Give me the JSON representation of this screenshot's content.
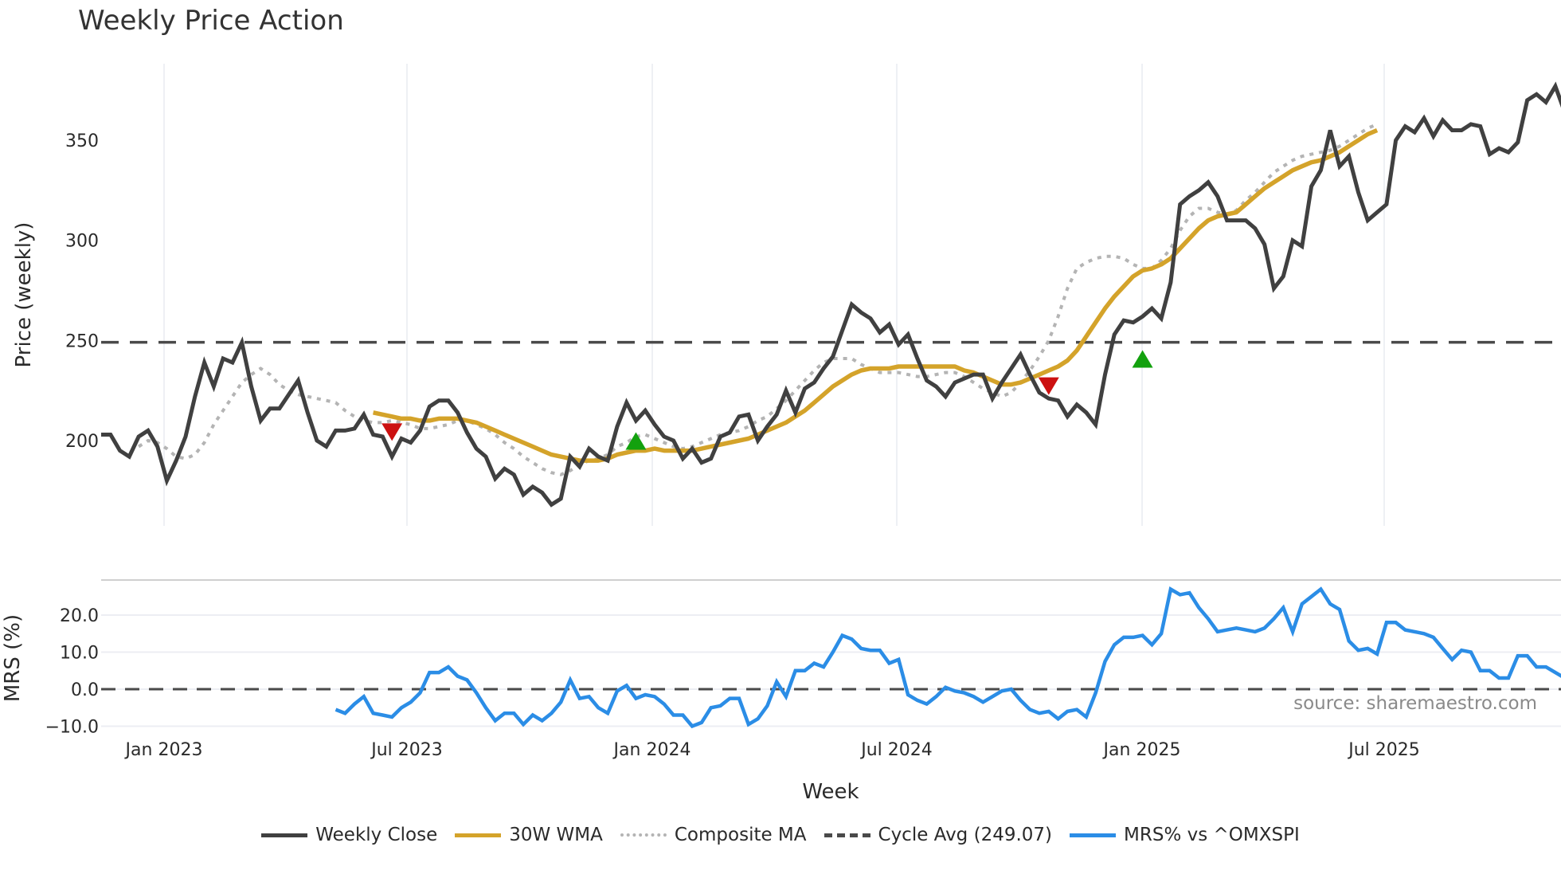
{
  "title": "Weekly Price Action",
  "source_note": "source: sharemaestro.com",
  "xlabel": "Week",
  "price_panel": {
    "ylabel": "Price (weekly)",
    "yticks": [
      "200",
      "250",
      "300",
      "350"
    ]
  },
  "mrs_panel": {
    "ylabel": "MRS (%)",
    "yticks": [
      "20.0",
      "10.0",
      "0.0",
      "−10.0"
    ]
  },
  "xticks": [
    "Jan 2023",
    "Jul 2023",
    "Jan 2024",
    "Jul 2024",
    "Jan 2025",
    "Jul 2025"
  ],
  "legend": [
    {
      "label": "Weekly Close",
      "color": "#404040",
      "style": "solid"
    },
    {
      "label": "30W WMA",
      "color": "#d4a32a",
      "style": "solid"
    },
    {
      "label": "Composite MA",
      "color": "#b4b4b4",
      "style": "dotted"
    },
    {
      "label": "Cycle Avg (249.07)",
      "color": "#4a4a4a",
      "style": "dashed"
    },
    {
      "label": "MRS% vs ^OMXSPI",
      "color": "#2b8de6",
      "style": "solid"
    }
  ],
  "colors": {
    "close": "#404040",
    "wma": "#d4a32a",
    "composite": "#b4b4b4",
    "cycle": "#4a4a4a",
    "mrs": "#2b8de6",
    "buy": "#13a10e",
    "sell": "#cc1111",
    "grid": "#eef0f4"
  },
  "chart_data": [
    {
      "type": "line",
      "title": "Weekly Price Action",
      "xlabel": "Week",
      "ylabel": "Price (weekly)",
      "ylim": [
        155,
        385
      ],
      "x_start": "2022-12-05",
      "x_step": "1 week",
      "xticks": [
        "Jan 2023",
        "Jul 2023",
        "Jan 2024",
        "Jul 2024",
        "Jan 2025",
        "Jul 2025"
      ],
      "grid": "vertical",
      "legend_position": "bottom",
      "series": [
        {
          "name": "Weekly Close",
          "values": [
            203,
            203,
            195,
            192,
            202,
            205,
            197,
            180,
            190,
            202,
            222,
            239,
            227,
            241,
            239,
            249,
            227,
            210,
            216,
            216,
            223,
            230,
            214,
            200,
            197,
            205,
            205,
            206,
            213,
            203,
            202,
            192,
            201,
            199,
            205,
            217,
            220,
            220,
            214,
            204,
            196,
            192,
            181,
            186,
            183,
            173,
            177,
            174,
            168,
            171,
            192,
            187,
            196,
            192,
            190,
            207,
            219,
            210,
            215,
            208,
            202,
            200,
            191,
            196,
            189,
            191,
            202,
            204,
            212,
            213,
            200,
            207,
            213,
            225,
            214,
            226,
            229,
            236,
            242,
            255,
            268,
            264,
            261,
            254,
            258,
            248,
            253,
            241,
            230,
            227,
            222,
            229,
            231,
            233,
            233,
            221,
            229,
            236,
            243,
            233,
            224,
            221,
            220,
            212,
            218,
            214,
            208,
            233,
            253,
            260,
            259,
            262,
            266,
            261,
            279,
            318,
            322,
            325,
            329,
            322,
            310,
            310,
            310,
            306,
            298,
            276,
            282,
            300,
            297,
            327,
            335,
            355,
            337,
            342,
            324,
            310,
            314,
            318,
            350,
            357,
            354,
            361,
            352,
            360,
            355,
            355,
            358,
            357,
            343,
            346,
            344,
            349,
            370,
            373,
            369,
            377,
            364,
            364
          ]
        },
        {
          "name": "30W WMA",
          "start_index": 29,
          "values": [
            214,
            213,
            212,
            211,
            211,
            210,
            210,
            211,
            211,
            211,
            210,
            209,
            207,
            205,
            203,
            201,
            199,
            197,
            195,
            193,
            192,
            191,
            190,
            190,
            190,
            191,
            193,
            194,
            195,
            195,
            196,
            195,
            195,
            195,
            195,
            196,
            197,
            198,
            199,
            200,
            201,
            203,
            205,
            207,
            209,
            212,
            215,
            219,
            223,
            227,
            230,
            233,
            235,
            236,
            236,
            236,
            237,
            237,
            237,
            237,
            237,
            237,
            237,
            235,
            234,
            232,
            230,
            228,
            228,
            229,
            231,
            233,
            235,
            237,
            240,
            245,
            252,
            259,
            266,
            272,
            277,
            282,
            285,
            286,
            288,
            291,
            296,
            301,
            306,
            310,
            312,
            313,
            314,
            318,
            322,
            326,
            329,
            332,
            335,
            337,
            339,
            340,
            342,
            344,
            347,
            350,
            353,
            355
          ]
        },
        {
          "name": "Composite MA",
          "start_index": 4,
          "values": [
            197,
            200,
            199,
            196,
            192,
            191,
            193,
            199,
            208,
            215,
            222,
            229,
            233,
            236,
            233,
            228,
            225,
            223,
            222,
            221,
            220,
            219,
            215,
            212,
            210,
            209,
            209,
            210,
            209,
            208,
            206,
            206,
            207,
            208,
            210,
            210,
            208,
            206,
            203,
            199,
            196,
            192,
            189,
            186,
            184,
            183,
            185,
            188,
            190,
            191,
            193,
            197,
            199,
            202,
            203,
            201,
            199,
            197,
            196,
            197,
            199,
            201,
            203,
            204,
            205,
            207,
            210,
            212,
            216,
            220,
            225,
            230,
            235,
            239,
            241,
            241,
            241,
            238,
            236,
            234,
            234,
            234,
            233,
            232,
            232,
            233,
            234,
            234,
            232,
            229,
            226,
            224,
            222,
            224,
            229,
            235,
            242,
            250,
            262,
            276,
            286,
            289,
            291,
            292,
            292,
            291,
            288,
            286,
            286,
            290,
            296,
            305,
            312,
            316,
            316,
            314,
            313,
            315,
            320,
            324,
            329,
            334,
            337,
            340,
            342,
            343,
            344,
            345,
            347,
            350,
            353,
            356,
            358
          ]
        },
        {
          "name": "Cycle Avg",
          "values": "constant",
          "value": 249.07,
          "style": "dashed"
        }
      ],
      "markers": [
        {
          "type": "sell",
          "shape": "down-triangle",
          "color": "#cc1111",
          "index": 31,
          "value": 205
        },
        {
          "type": "buy",
          "shape": "up-triangle",
          "color": "#13a10e",
          "index": 57,
          "value": 199
        },
        {
          "type": "sell",
          "shape": "down-triangle",
          "color": "#cc1111",
          "index": 101,
          "value": 228
        },
        {
          "type": "buy",
          "shape": "up-triangle",
          "color": "#13a10e",
          "index": 111,
          "value": 240
        }
      ]
    },
    {
      "type": "line",
      "title": "MRS% vs ^OMXSPI",
      "ylabel": "MRS (%)",
      "ylim": [
        -13,
        30
      ],
      "yticks": [
        20.0,
        10.0,
        0.0,
        -10.0
      ],
      "grid": "horizontal",
      "reference_line": {
        "value": 0.0,
        "style": "dashed"
      },
      "series": [
        {
          "name": "MRS% vs ^OMXSPI",
          "start_index": 25,
          "values": [
            -5.5,
            -6.5,
            -4,
            -2,
            -6.5,
            -7,
            -7.5,
            -5,
            -3.5,
            -1,
            4.5,
            4.5,
            6,
            3.5,
            2.5,
            -1,
            -5,
            -8.5,
            -6.5,
            -6.5,
            -9.5,
            -7,
            -8.5,
            -6.5,
            -3.5,
            2.5,
            -2.5,
            -2,
            -5,
            -6.5,
            -0.5,
            1,
            -2.5,
            -1.5,
            -2,
            -4,
            -7,
            -7,
            -10,
            -9,
            -5,
            -4.5,
            -2.5,
            -2.5,
            -9.5,
            -8,
            -4.5,
            2,
            -2,
            5,
            5,
            7,
            6,
            10,
            14.5,
            13.5,
            11,
            10.5,
            10.5,
            7,
            8,
            -1.5,
            -3,
            -4,
            -2,
            0.5,
            -0.5,
            -1,
            -2,
            -3.5,
            -2,
            -0.5,
            0,
            -3,
            -5.5,
            -6.5,
            -6,
            -8,
            -6,
            -5.5,
            -7.5,
            -1,
            7.5,
            12,
            14,
            14,
            14.5,
            12,
            15,
            27,
            25.5,
            26,
            22,
            19,
            15.5,
            16,
            16.5,
            16,
            15.5,
            16.5,
            19,
            22,
            15.5,
            23,
            25,
            27,
            23,
            21.5,
            13,
            10.5,
            11,
            9.5,
            18,
            18,
            16,
            15.5,
            15,
            14,
            11,
            8,
            10.5,
            10,
            5,
            5,
            3,
            3,
            9,
            9,
            6,
            6,
            4.5,
            3
          ]
        }
      ]
    }
  ]
}
